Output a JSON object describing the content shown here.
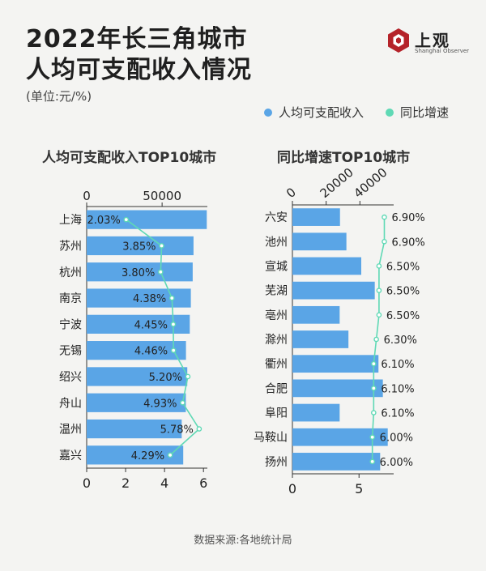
{
  "header": {
    "title_line1": "2022年长三角城市",
    "title_line2": "人均可支配收入情况",
    "unit": "(单位:元/%)"
  },
  "logo": {
    "name": "上观",
    "sub": "Shanghai Observer",
    "icon": "hexagon-logo-icon",
    "color": "#b5232a"
  },
  "legend": {
    "income_label": "人均可支配收入",
    "growth_label": "同比增速",
    "income_color": "#5aa5e6",
    "growth_color": "#5fd9b5"
  },
  "source": "数据来源:各地统计局",
  "chart_data": [
    {
      "type": "bar",
      "title": "人均可支配收入TOP10城市",
      "categories": [
        "上海",
        "苏州",
        "杭州",
        "南京",
        "宁波",
        "无锡",
        "绍兴",
        "舟山",
        "温州",
        "嘉兴"
      ],
      "series": [
        {
          "name": "人均可支配收入",
          "axis": "top",
          "values": [
            79610,
            70819,
            70281,
            69049,
            68348,
            65825,
            66694,
            65732,
            63000,
            64000
          ]
        },
        {
          "name": "同比增速",
          "axis": "bottom",
          "values": [
            2.03,
            3.85,
            3.8,
            4.38,
            4.45,
            4.46,
            5.2,
            4.93,
            5.78,
            4.29
          ],
          "labels": [
            "2.03%",
            "3.85%",
            "3.80%",
            "4.38%",
            "4.45%",
            "4.46%",
            "5.20%",
            "4.93%",
            "5.78%",
            "4.29%"
          ]
        }
      ],
      "top_axis": {
        "range": [
          0,
          80000
        ],
        "ticks": [
          0,
          50000
        ]
      },
      "bottom_axis": {
        "range": [
          0,
          6.2
        ],
        "ticks": [
          0,
          2,
          4,
          6
        ]
      }
    },
    {
      "type": "bar",
      "title": "同比增速TOP10城市",
      "categories": [
        "六安",
        "池州",
        "宣城",
        "芜湖",
        "亳州",
        "滁州",
        "衢州",
        "合肥",
        "阜阳",
        "马鞍山",
        "扬州"
      ],
      "series": [
        {
          "name": "人均可支配收入",
          "axis": "top",
          "values": [
            28200,
            32000,
            40800,
            48800,
            28000,
            33200,
            51000,
            53600,
            28000,
            56500,
            52000
          ]
        },
        {
          "name": "同比增速",
          "axis": "bottom",
          "values": [
            6.9,
            6.9,
            6.5,
            6.5,
            6.5,
            6.3,
            6.1,
            6.1,
            6.1,
            6.0,
            6.0
          ],
          "labels": [
            "6.90%",
            "6.90%",
            "6.50%",
            "6.50%",
            "6.50%",
            "6.30%",
            "6.10%",
            "6.10%",
            "6.10%",
            "6.00%",
            "6.00%"
          ]
        }
      ],
      "top_axis": {
        "range": [
          0,
          60000
        ],
        "ticks": [
          0,
          20000,
          40000
        ]
      },
      "bottom_axis": {
        "range": [
          0,
          7.6
        ],
        "ticks": [
          0,
          5
        ]
      }
    }
  ]
}
